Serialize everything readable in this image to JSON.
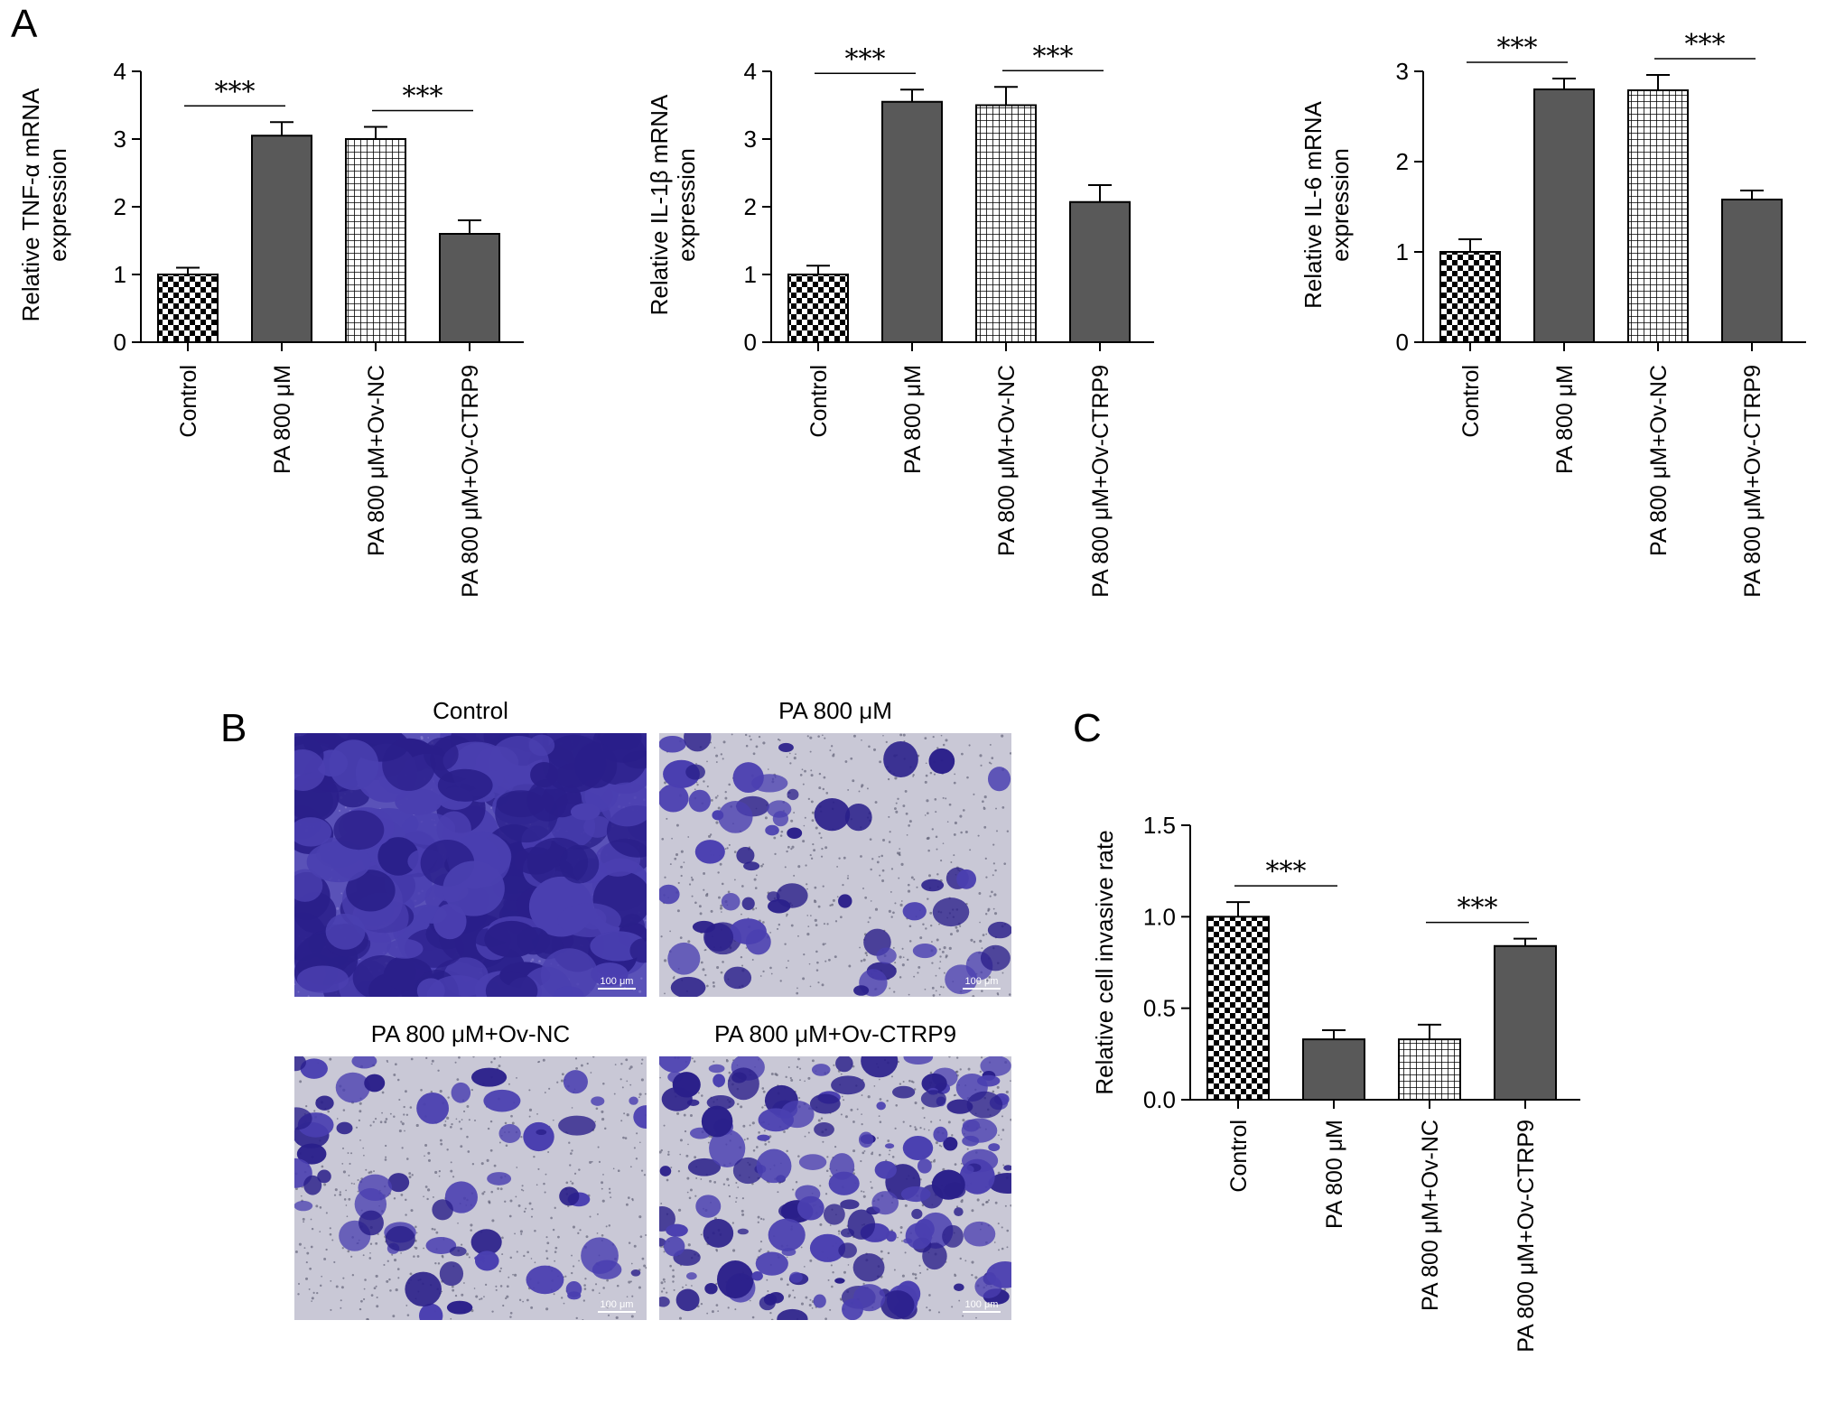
{
  "panel_labels": {
    "a": "A",
    "b": "B",
    "c": "C"
  },
  "categories": [
    "Control",
    "PA 800 μM",
    "PA 800 μM+Ov-NC",
    "PA 800 μM+Ov-CTRP9"
  ],
  "significance_label": "***",
  "chart_data": [
    {
      "type": "bar",
      "ylabel": [
        "Relative TNF-α mRNA",
        "expression"
      ],
      "categories": [
        "Control",
        "PA 800 μM",
        "PA 800 μM+Ov-NC",
        "PA 800 μM+Ov-CTRP9"
      ],
      "values": [
        1.0,
        3.05,
        3.0,
        1.6
      ],
      "errors": [
        0.1,
        0.2,
        0.18,
        0.2
      ],
      "ylim": [
        0,
        4
      ],
      "yticks": [
        0,
        1,
        2,
        3,
        4
      ],
      "ytick_labels": [
        "0",
        "1",
        "2",
        "3",
        "4"
      ],
      "fills": [
        "checker",
        "solid",
        "grid",
        "solid"
      ],
      "comparisons": [
        {
          "from": 0,
          "to": 1,
          "label": "***"
        },
        {
          "from": 2,
          "to": 3,
          "label": "***"
        }
      ]
    },
    {
      "type": "bar",
      "ylabel": [
        "Relative IL-1β mRNA",
        "expression"
      ],
      "categories": [
        "Control",
        "PA 800 μM",
        "PA 800 μM+Ov-NC",
        "PA 800 μM+Ov-CTRP9"
      ],
      "values": [
        1.0,
        3.55,
        3.5,
        2.07
      ],
      "errors": [
        0.13,
        0.18,
        0.27,
        0.25
      ],
      "ylim": [
        0,
        4
      ],
      "yticks": [
        0,
        1,
        2,
        3,
        4
      ],
      "ytick_labels": [
        "0",
        "1",
        "2",
        "3",
        "4"
      ],
      "fills": [
        "checker",
        "solid",
        "grid",
        "solid"
      ],
      "comparisons": [
        {
          "from": 0,
          "to": 1,
          "label": "***"
        },
        {
          "from": 2,
          "to": 3,
          "label": "***"
        }
      ]
    },
    {
      "type": "bar",
      "ylabel": [
        "Relative IL-6 mRNA",
        "expression"
      ],
      "categories": [
        "Control",
        "PA 800 μM",
        "PA 800 μM+Ov-NC",
        "PA 800 μM+Ov-CTRP9"
      ],
      "values": [
        1.0,
        2.8,
        2.79,
        1.58
      ],
      "errors": [
        0.14,
        0.12,
        0.17,
        0.1
      ],
      "ylim": [
        0,
        3
      ],
      "yticks": [
        0,
        1,
        2,
        3
      ],
      "ytick_labels": [
        "0",
        "1",
        "2",
        "3"
      ],
      "fills": [
        "checker",
        "solid",
        "grid",
        "solid"
      ],
      "comparisons": [
        {
          "from": 0,
          "to": 1,
          "label": "***"
        },
        {
          "from": 2,
          "to": 3,
          "label": "***"
        }
      ]
    },
    {
      "type": "bar",
      "ylabel": [
        "Relative cell invasive rate"
      ],
      "categories": [
        "Control",
        "PA 800 μM",
        "PA 800 μM+Ov-NC",
        "PA 800 μM+Ov-CTRP9"
      ],
      "values": [
        1.0,
        0.33,
        0.33,
        0.84
      ],
      "errors": [
        0.08,
        0.05,
        0.08,
        0.04
      ],
      "ylim": [
        0,
        1.5
      ],
      "yticks": [
        0,
        0.5,
        1.0,
        1.5
      ],
      "ytick_labels": [
        "0.0",
        "0.5",
        "1.0",
        "1.5"
      ],
      "fills": [
        "checker",
        "solid",
        "grid",
        "solid"
      ],
      "comparisons": [
        {
          "from": 0,
          "to": 1,
          "label": "***"
        },
        {
          "from": 2,
          "to": 3,
          "label": "***"
        }
      ]
    }
  ],
  "micrographs": [
    {
      "title": "Control",
      "scale_label": "100 μm",
      "density": "dense"
    },
    {
      "title": "PA 800 μM",
      "scale_label": "100 μm",
      "density": "sparse"
    },
    {
      "title": "PA 800 μM+Ov-NC",
      "scale_label": "100 μm",
      "density": "sparse"
    },
    {
      "title": "PA 800 μM+Ov-CTRP9",
      "scale_label": "100 μm",
      "density": "medium"
    }
  ],
  "colors": {
    "bar_fill": "#595959",
    "stain": "#4a3fb0",
    "stain_dark": "#2a1f8a",
    "background_membrane": "#c9c8d6"
  }
}
